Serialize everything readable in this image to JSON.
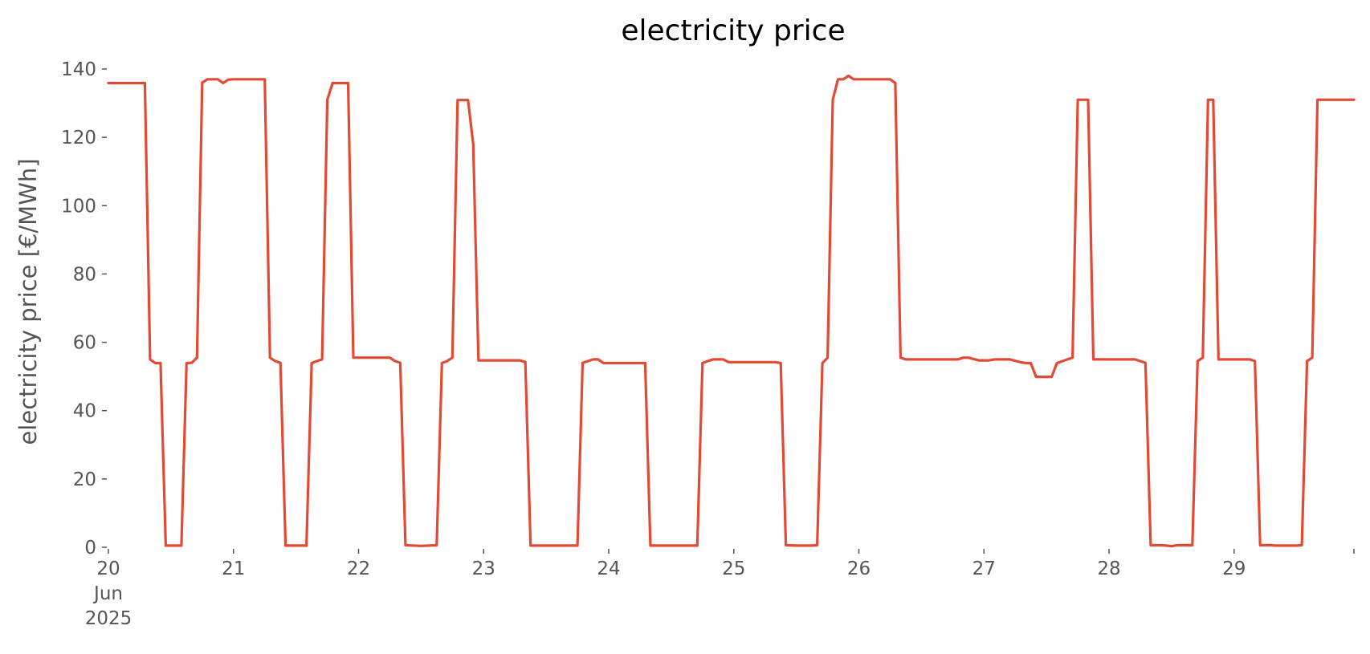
{
  "chart_data": {
    "type": "line",
    "title": "electricity price",
    "xlabel": "",
    "ylabel": "electricity price [€/MWh]",
    "xlim": [
      "2025-06-20 00:00",
      "2025-06-29 23:00"
    ],
    "ylim": [
      0,
      140
    ],
    "yticks": [
      0,
      20,
      40,
      60,
      80,
      100,
      120,
      140
    ],
    "xticks": [
      {
        "date": "2025-06-20",
        "label": [
          "20",
          "Jun",
          "2025"
        ]
      },
      {
        "date": "2025-06-21",
        "label": [
          "21"
        ]
      },
      {
        "date": "2025-06-22",
        "label": [
          "22"
        ]
      },
      {
        "date": "2025-06-23",
        "label": [
          "23"
        ]
      },
      {
        "date": "2025-06-24",
        "label": [
          "24"
        ]
      },
      {
        "date": "2025-06-25",
        "label": [
          "25"
        ]
      },
      {
        "date": "2025-06-26",
        "label": [
          "26"
        ]
      },
      {
        "date": "2025-06-27",
        "label": [
          "27"
        ]
      },
      {
        "date": "2025-06-28",
        "label": [
          "28"
        ]
      },
      {
        "date": "2025-06-29",
        "label": [
          "29"
        ]
      }
    ],
    "grid": false,
    "colors": {
      "line": "#E24A33"
    },
    "series": [
      {
        "color": "#E24A33",
        "points": [
          [
            "2025-06-20 00:00",
            135.9
          ],
          [
            "2025-06-20 07:00",
            135.9
          ],
          [
            "2025-06-20 08:00",
            55.0
          ],
          [
            "2025-06-20 09:00",
            53.9
          ],
          [
            "2025-06-20 10:00",
            53.9
          ],
          [
            "2025-06-20 11:00",
            0.5
          ],
          [
            "2025-06-20 14:00",
            0.5
          ],
          [
            "2025-06-20 15:00",
            53.9
          ],
          [
            "2025-06-20 16:00",
            54.0
          ],
          [
            "2025-06-20 17:00",
            55.5
          ],
          [
            "2025-06-20 18:00",
            136.0
          ],
          [
            "2025-06-20 19:00",
            137.0
          ],
          [
            "2025-06-20 21:00",
            137.0
          ],
          [
            "2025-06-20 22:00",
            135.9
          ],
          [
            "2025-06-20 23:00",
            136.9
          ],
          [
            "2025-06-21 00:00",
            137.0
          ],
          [
            "2025-06-21 06:00",
            137.0
          ],
          [
            "2025-06-21 07:00",
            55.5
          ],
          [
            "2025-06-21 08:00",
            54.5
          ],
          [
            "2025-06-21 09:00",
            54.0
          ],
          [
            "2025-06-21 10:00",
            0.5
          ],
          [
            "2025-06-21 14:00",
            0.5
          ],
          [
            "2025-06-21 15:00",
            53.9
          ],
          [
            "2025-06-21 16:00",
            54.5
          ],
          [
            "2025-06-21 17:00",
            55.0
          ],
          [
            "2025-06-21 18:00",
            131.0
          ],
          [
            "2025-06-21 19:00",
            135.9
          ],
          [
            "2025-06-21 22:00",
            135.9
          ],
          [
            "2025-06-21 23:00",
            55.5
          ],
          [
            "2025-06-22 00:00",
            55.5
          ],
          [
            "2025-06-22 06:00",
            55.5
          ],
          [
            "2025-06-22 07:00",
            54.5
          ],
          [
            "2025-06-22 08:00",
            54.0
          ],
          [
            "2025-06-22 09:00",
            0.6
          ],
          [
            "2025-06-22 12:00",
            0.4
          ],
          [
            "2025-06-22 15:00",
            0.6
          ],
          [
            "2025-06-22 16:00",
            53.9
          ],
          [
            "2025-06-22 17:00",
            54.5
          ],
          [
            "2025-06-22 18:00",
            55.5
          ],
          [
            "2025-06-22 19:00",
            130.9
          ],
          [
            "2025-06-22 21:00",
            130.9
          ],
          [
            "2025-06-22 22:00",
            118.0
          ],
          [
            "2025-06-22 23:00",
            54.7
          ],
          [
            "2025-06-23 00:00",
            54.7
          ],
          [
            "2025-06-23 07:00",
            54.7
          ],
          [
            "2025-06-23 08:00",
            54.2
          ],
          [
            "2025-06-23 09:00",
            0.5
          ],
          [
            "2025-06-23 18:00",
            0.5
          ],
          [
            "2025-06-23 19:00",
            54.0
          ],
          [
            "2025-06-23 20:00",
            54.5
          ],
          [
            "2025-06-23 21:00",
            55.0
          ],
          [
            "2025-06-23 22:00",
            55.0
          ],
          [
            "2025-06-23 23:00",
            53.9
          ],
          [
            "2025-06-24 00:00",
            53.9
          ],
          [
            "2025-06-24 07:00",
            53.9
          ],
          [
            "2025-06-24 08:00",
            0.5
          ],
          [
            "2025-06-24 17:00",
            0.5
          ],
          [
            "2025-06-24 18:00",
            53.9
          ],
          [
            "2025-06-24 19:00",
            54.5
          ],
          [
            "2025-06-24 20:00",
            55.0
          ],
          [
            "2025-06-24 22:00",
            55.0
          ],
          [
            "2025-06-24 23:00",
            54.2
          ],
          [
            "2025-06-25 00:00",
            54.2
          ],
          [
            "2025-06-25 08:00",
            54.2
          ],
          [
            "2025-06-25 09:00",
            53.9
          ],
          [
            "2025-06-25 10:00",
            0.6
          ],
          [
            "2025-06-25 12:00",
            0.5
          ],
          [
            "2025-06-25 15:00",
            0.5
          ],
          [
            "2025-06-25 16:00",
            0.6
          ],
          [
            "2025-06-25 17:00",
            53.9
          ],
          [
            "2025-06-25 18:00",
            55.5
          ],
          [
            "2025-06-25 19:00",
            131.0
          ],
          [
            "2025-06-25 20:00",
            137.0
          ],
          [
            "2025-06-25 21:00",
            137.0
          ],
          [
            "2025-06-25 22:00",
            138.0
          ],
          [
            "2025-06-25 23:00",
            137.0
          ],
          [
            "2025-06-26 00:00",
            137.0
          ],
          [
            "2025-06-26 06:00",
            137.0
          ],
          [
            "2025-06-26 07:00",
            135.9
          ],
          [
            "2025-06-26 08:00",
            55.5
          ],
          [
            "2025-06-26 09:00",
            55.0
          ],
          [
            "2025-06-26 19:00",
            55.0
          ],
          [
            "2025-06-26 20:00",
            55.5
          ],
          [
            "2025-06-26 21:00",
            55.5
          ],
          [
            "2025-06-26 23:00",
            54.7
          ],
          [
            "2025-06-27 00:00",
            54.7
          ],
          [
            "2025-06-27 01:00",
            54.7
          ],
          [
            "2025-06-27 02:00",
            55.0
          ],
          [
            "2025-06-27 05:00",
            55.0
          ],
          [
            "2025-06-27 07:00",
            54.2
          ],
          [
            "2025-06-27 08:00",
            53.9
          ],
          [
            "2025-06-27 09:00",
            53.9
          ],
          [
            "2025-06-27 10:00",
            49.9
          ],
          [
            "2025-06-27 13:00",
            49.9
          ],
          [
            "2025-06-27 14:00",
            53.9
          ],
          [
            "2025-06-27 16:00",
            55.0
          ],
          [
            "2025-06-27 17:00",
            55.5
          ],
          [
            "2025-06-27 18:00",
            131.0
          ],
          [
            "2025-06-27 20:00",
            131.0
          ],
          [
            "2025-06-27 21:00",
            55.0
          ],
          [
            "2025-06-28 00:00",
            55.0
          ],
          [
            "2025-06-28 05:00",
            55.0
          ],
          [
            "2025-06-28 06:00",
            54.5
          ],
          [
            "2025-06-28 07:00",
            54.0
          ],
          [
            "2025-06-28 08:00",
            0.6
          ],
          [
            "2025-06-28 10:00",
            0.6
          ],
          [
            "2025-06-28 11:00",
            0.5
          ],
          [
            "2025-06-28 12:00",
            0.3
          ],
          [
            "2025-06-28 13:00",
            0.6
          ],
          [
            "2025-06-28 16:00",
            0.6
          ],
          [
            "2025-06-28 17:00",
            54.5
          ],
          [
            "2025-06-28 18:00",
            55.5
          ],
          [
            "2025-06-28 19:00",
            131.0
          ],
          [
            "2025-06-28 20:00",
            131.0
          ],
          [
            "2025-06-28 21:00",
            55.0
          ],
          [
            "2025-06-29 00:00",
            55.0
          ],
          [
            "2025-06-29 03:00",
            55.0
          ],
          [
            "2025-06-29 04:00",
            54.5
          ],
          [
            "2025-06-29 05:00",
            0.6
          ],
          [
            "2025-06-29 07:00",
            0.6
          ],
          [
            "2025-06-29 08:00",
            0.5
          ],
          [
            "2025-06-29 12:00",
            0.5
          ],
          [
            "2025-06-29 13:00",
            0.6
          ],
          [
            "2025-06-29 14:00",
            54.5
          ],
          [
            "2025-06-29 15:00",
            55.5
          ],
          [
            "2025-06-29 16:00",
            131.0
          ],
          [
            "2025-06-29 23:00",
            131.0
          ]
        ]
      }
    ]
  }
}
